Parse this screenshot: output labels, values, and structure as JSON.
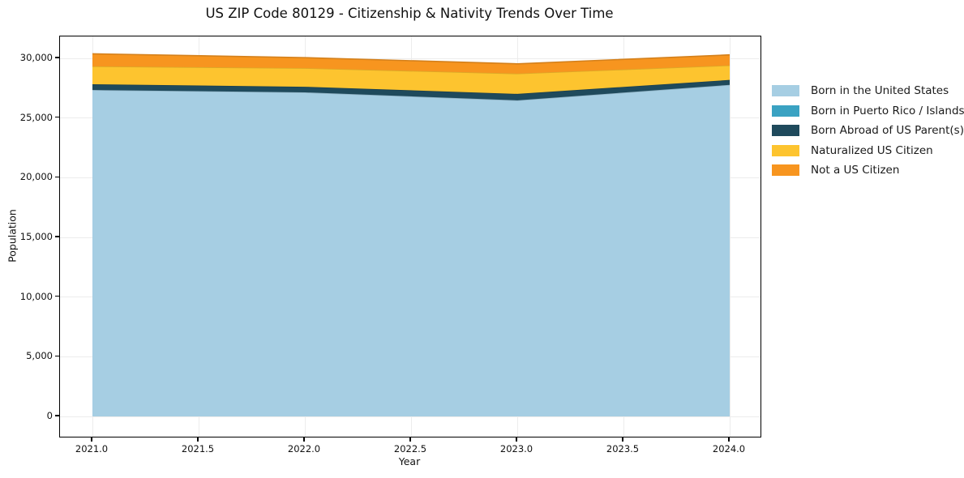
{
  "figure": {
    "title": "US ZIP Code 80129 - Citizenship & Nativity Trends Over Time"
  },
  "chart_data": {
    "type": "area",
    "stacked": true,
    "title": "US ZIP Code 80129 - Citizenship & Nativity Trends Over Time",
    "xlabel": "Year",
    "ylabel": "Population",
    "x": [
      2021,
      2022,
      2023,
      2024
    ],
    "series": [
      {
        "name": "Born in the United States",
        "color": "#a6cee3",
        "values": [
          27350,
          27150,
          26480,
          27780
        ]
      },
      {
        "name": "Born in Puerto Rico / Islands",
        "color": "#3aa2c2",
        "values": [
          0,
          0,
          0,
          0
        ]
      },
      {
        "name": "Born Abroad of US Parent(s)",
        "color": "#1f4a5c",
        "values": [
          480,
          470,
          540,
          410
        ]
      },
      {
        "name": "Naturalized US Citizen",
        "color": "#fdc42f",
        "values": [
          1500,
          1560,
          1700,
          1220
        ]
      },
      {
        "name": "Not a US Citizen",
        "color": "#f7951f",
        "values": [
          1050,
          880,
          820,
          880
        ]
      }
    ],
    "totals": [
      30380,
      30060,
      29540,
      30290
    ],
    "xlim": [
      2020.85,
      2024.15
    ],
    "ylim": [
      -1730,
      31840
    ],
    "x_ticks": [
      {
        "v": 2021.0,
        "label": "2021.0"
      },
      {
        "v": 2021.5,
        "label": "2021.5"
      },
      {
        "v": 2022.0,
        "label": "2022.0"
      },
      {
        "v": 2022.5,
        "label": "2022.5"
      },
      {
        "v": 2023.0,
        "label": "2023.0"
      },
      {
        "v": 2023.5,
        "label": "2023.5"
      },
      {
        "v": 2024.0,
        "label": "2024.0"
      }
    ],
    "y_ticks": [
      {
        "v": 0,
        "label": "0"
      },
      {
        "v": 5000,
        "label": "5,000"
      },
      {
        "v": 10000,
        "label": "10,000"
      },
      {
        "v": 15000,
        "label": "15,000"
      },
      {
        "v": 20000,
        "label": "20,000"
      },
      {
        "v": 25000,
        "label": "25,000"
      },
      {
        "v": 30000,
        "label": "30,000"
      }
    ],
    "grid": true,
    "legend_position": "right-outside",
    "colors": {
      "background": "#ffffff",
      "gridline": "#ececec",
      "spine": "#000000",
      "text": "#111111"
    }
  }
}
